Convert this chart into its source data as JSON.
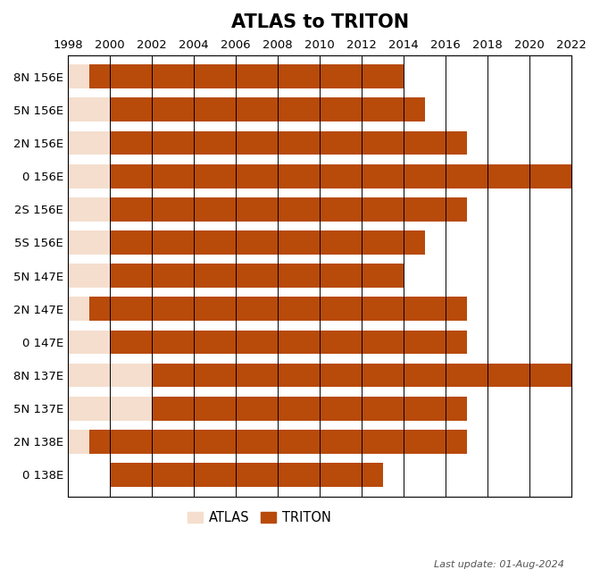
{
  "title": "ATLAS to TRITON",
  "locations": [
    "8N 156E",
    "5N 156E",
    "2N 156E",
    "0 156E",
    "2S 156E",
    "5S 156E",
    "5N 147E",
    "2N 147E",
    "0 147E",
    "8N 137E",
    "5N 137E",
    "2N 138E",
    "0 138E"
  ],
  "atlas_start": [
    1998,
    1998,
    1998,
    1998,
    1998,
    1998,
    1998,
    1998,
    1998,
    1998,
    1998,
    1998,
    2000
  ],
  "atlas_end": [
    1999,
    2000,
    2000,
    2000,
    2000,
    2000,
    2000,
    1999,
    2000,
    2002,
    2002,
    1999,
    2000
  ],
  "triton_start": [
    1999,
    2000,
    2000,
    2000,
    2000,
    2000,
    2000,
    1999,
    2000,
    2002,
    2002,
    1999,
    2000
  ],
  "triton_end": [
    2014,
    2015,
    2017,
    2022,
    2017,
    2015,
    2014,
    2017,
    2017,
    2022,
    2017,
    2017,
    2013
  ],
  "atlas_color": "#f5dece",
  "triton_color": "#b84a0a",
  "xmin": 1998,
  "xmax": 2022,
  "xticks": [
    1998,
    2000,
    2002,
    2004,
    2006,
    2008,
    2010,
    2012,
    2014,
    2016,
    2018,
    2020,
    2022
  ],
  "legend_atlas": "ATLAS",
  "legend_triton": "TRITON",
  "footer_text": "Last update: 01-Aug-2024",
  "background_color": "#ffffff",
  "bar_height": 0.72,
  "title_fontsize": 15,
  "tick_fontsize": 9.5,
  "label_fontsize": 9.5
}
